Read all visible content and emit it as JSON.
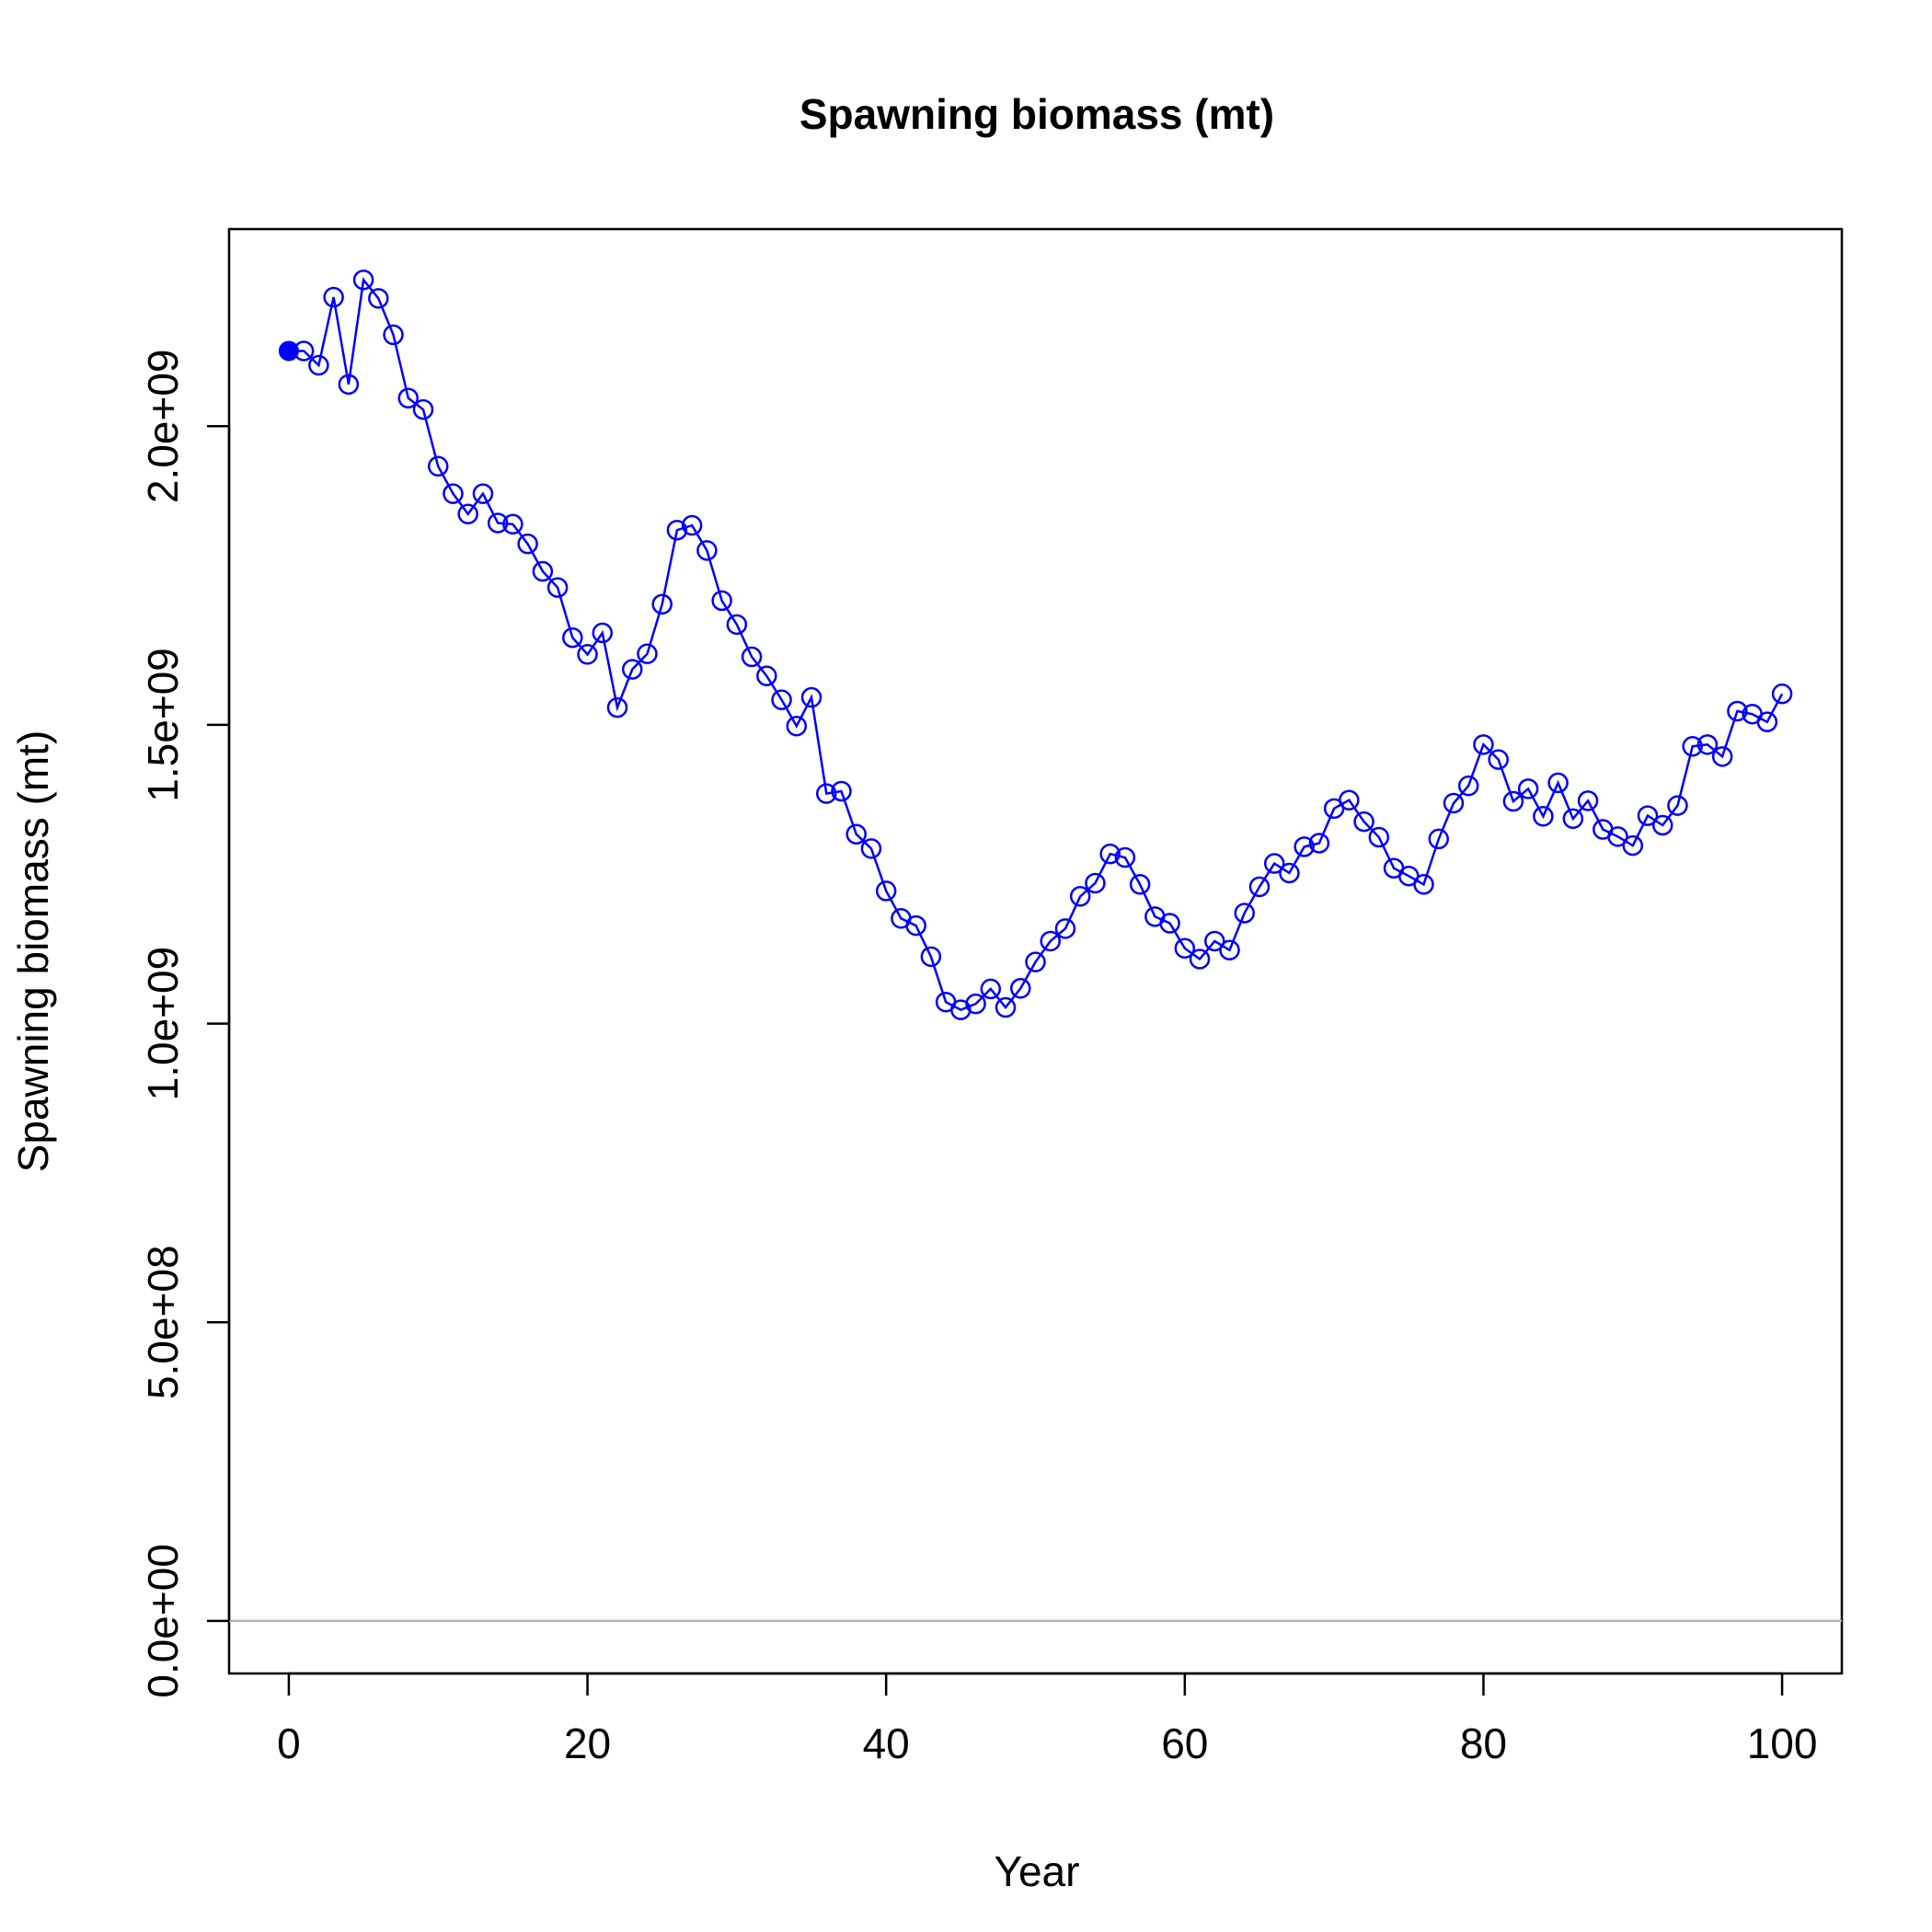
{
  "chart_data": {
    "type": "line",
    "title": "Spawning biomass (mt)",
    "xlabel": "Year",
    "ylabel": "Spawning biomass (mt)",
    "xlim": [
      -4,
      104
    ],
    "ylim": [
      -88000000,
      2330000000
    ],
    "x_ticks": [
      0,
      20,
      40,
      60,
      80,
      100
    ],
    "x_tick_labels": [
      "0",
      "20",
      "40",
      "60",
      "80",
      "100"
    ],
    "y_ticks": [
      0,
      500000000,
      1000000000,
      1500000000,
      2000000000
    ],
    "y_tick_labels": [
      "0.0e+00",
      "5.0e+08",
      "1.0e+09",
      "1.5e+09",
      "2.0e+09"
    ],
    "reference_line": {
      "y": 0,
      "color": "#b3b3b3"
    },
    "grid": false,
    "legend": "none",
    "series": [
      {
        "color": "#0000ff",
        "marker": "open-circle",
        "first_point_marker": "filled-circle",
        "x": [
          0,
          1,
          2,
          3,
          4,
          5,
          6,
          7,
          8,
          9,
          10,
          11,
          12,
          13,
          14,
          15,
          16,
          17,
          18,
          19,
          20,
          21,
          22,
          23,
          24,
          25,
          26,
          27,
          28,
          29,
          30,
          31,
          32,
          33,
          34,
          35,
          36,
          37,
          38,
          39,
          40,
          41,
          42,
          43,
          44,
          45,
          46,
          47,
          48,
          49,
          50,
          51,
          52,
          53,
          54,
          55,
          56,
          57,
          58,
          59,
          60,
          61,
          62,
          63,
          64,
          65,
          66,
          67,
          68,
          69,
          70,
          71,
          72,
          73,
          74,
          75,
          76,
          77,
          78,
          79,
          80,
          81,
          82,
          83,
          84,
          85,
          86,
          87,
          88,
          89,
          90,
          91,
          92,
          93,
          94,
          95,
          96,
          97,
          98,
          99,
          100
        ],
        "y": [
          2126000000,
          2126000000,
          2102000000,
          2216000000,
          2070000000,
          2245000000,
          2214000000,
          2153000000,
          2047000000,
          2028000000,
          1933000000,
          1887000000,
          1853000000,
          1887000000,
          1838000000,
          1836000000,
          1803000000,
          1757000000,
          1730000000,
          1646000000,
          1618000000,
          1654000000,
          1529000000,
          1593000000,
          1619000000,
          1702000000,
          1826000000,
          1834000000,
          1792000000,
          1708000000,
          1668000000,
          1614000000,
          1582000000,
          1542000000,
          1498000000,
          1546000000,
          1385000000,
          1389000000,
          1317000000,
          1293000000,
          1222000000,
          1176000000,
          1164000000,
          1112000000,
          1036000000,
          1023000000,
          1033000000,
          1058000000,
          1027000000,
          1059000000,
          1103000000,
          1138000000,
          1159000000,
          1213000000,
          1235000000,
          1284000000,
          1278000000,
          1233000000,
          1179000000,
          1168000000,
          1126000000,
          1108000000,
          1138000000,
          1123000000,
          1185000000,
          1229000000,
          1268000000,
          1252000000,
          1296000000,
          1302000000,
          1360000000,
          1374000000,
          1338000000,
          1312000000,
          1260000000,
          1247000000,
          1233000000,
          1309000000,
          1369000000,
          1398000000,
          1467000000,
          1442000000,
          1372000000,
          1393000000,
          1347000000,
          1403000000,
          1343000000,
          1373000000,
          1325000000,
          1313000000,
          1298000000,
          1348000000,
          1332000000,
          1365000000,
          1464000000,
          1467000000,
          1447000000,
          1523000000,
          1518000000,
          1505000000,
          1552000000
        ]
      }
    ]
  }
}
